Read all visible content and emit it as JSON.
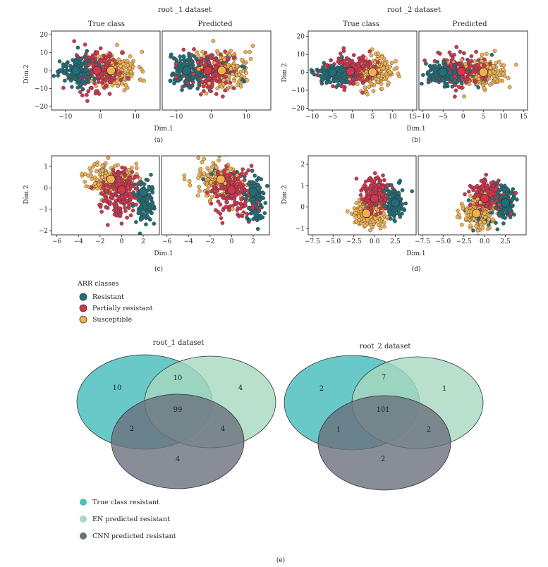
{
  "colors": {
    "resistant": "#1f6f78",
    "partially_resistant": "#d2354f",
    "susceptible": "#f3b04d",
    "venn_true": "#4fbfc0",
    "venn_en": "#a7d8c1",
    "venn_cnn": "#6a707d"
  },
  "legend": {
    "title": "ARR classes",
    "items": [
      {
        "label": "Resistant",
        "class": "resistant"
      },
      {
        "label": "Partially resistant",
        "class": "partially_resistant"
      },
      {
        "label": "Susceptible",
        "class": "susceptible"
      }
    ]
  },
  "chart_data": [
    {
      "type": "scatter",
      "panel": "(a)",
      "title": "root _1 dataset",
      "subplots": [
        "True class",
        "Predicted"
      ],
      "xlabel": "Dim.1",
      "ylabel": "Dim.2",
      "xlim": [
        -14,
        17
      ],
      "ylim": [
        -22,
        22
      ],
      "xticks": [
        -10,
        0,
        10
      ],
      "xtick_labels": [
        "−10",
        "0",
        "10"
      ],
      "yticks": [
        -20,
        -10,
        0,
        10,
        20
      ],
      "ytick_labels": [
        "−20",
        "−10",
        "0",
        "10",
        "20"
      ],
      "series": [
        {
          "class": "resistant",
          "center": [
            -7,
            0
          ],
          "spread": [
            3.2,
            5.5
          ]
        },
        {
          "class": "partially_resistant",
          "center": [
            -1.5,
            0
          ],
          "spread": [
            4.5,
            7.5
          ]
        },
        {
          "class": "susceptible",
          "center": [
            4,
            0
          ],
          "spread": [
            4.5,
            7
          ]
        }
      ],
      "centroids": [
        [
          -7,
          0
        ],
        [
          -1,
          0
        ],
        [
          3,
          0
        ]
      ]
    },
    {
      "type": "scatter",
      "panel": "(b)",
      "title": "root _2 dataset",
      "subplots": [
        "True class",
        "Predicted"
      ],
      "xlabel": "Dim.1",
      "ylabel": "Dim.2",
      "xlim": [
        -11,
        16
      ],
      "ylim": [
        -21,
        23
      ],
      "xticks": [
        -10,
        -5,
        0,
        5,
        10,
        15
      ],
      "xtick_labels": [
        "−10",
        "−5",
        "0",
        "5",
        "10",
        "15"
      ],
      "yticks": [
        -20,
        -10,
        0,
        10,
        20
      ],
      "ytick_labels": [
        "−20",
        "−10",
        "0",
        "10",
        "20"
      ],
      "series": [
        {
          "class": "resistant",
          "center": [
            -5,
            -1
          ],
          "spread": [
            3,
            4
          ]
        },
        {
          "class": "partially_resistant",
          "center": [
            -1,
            1
          ],
          "spread": [
            4,
            6
          ]
        },
        {
          "class": "susceptible",
          "center": [
            5,
            0
          ],
          "spread": [
            3.5,
            5.5
          ]
        }
      ],
      "centroids": [
        [
          -5,
          0
        ],
        [
          -0.5,
          0.5
        ],
        [
          5,
          0
        ]
      ]
    },
    {
      "type": "scatter",
      "panel": "(c)",
      "subplots": [
        "",
        ""
      ],
      "xlabel": "Dim.1",
      "ylabel": "Dim.2",
      "xlim": [
        -6.5,
        3.5
      ],
      "ylim": [
        -2.2,
        1.5
      ],
      "xticks": [
        -6,
        -4,
        -2,
        0,
        2
      ],
      "xtick_labels": [
        "−6",
        "−4",
        "−2",
        "0",
        "2"
      ],
      "yticks": [
        -2,
        -1,
        0,
        1
      ],
      "ytick_labels": [
        "−2",
        "−1",
        "0",
        "1"
      ],
      "series": [
        {
          "class": "resistant",
          "center": [
            2.2,
            -0.6
          ],
          "spread": [
            0.6,
            0.7
          ]
        },
        {
          "class": "partially_resistant",
          "center": [
            0,
            -0.2
          ],
          "spread": [
            1.2,
            0.7
          ]
        },
        {
          "class": "susceptible",
          "center": [
            -1,
            0.4
          ],
          "spread": [
            1.5,
            0.55
          ]
        }
      ],
      "centroids": [
        [
          2,
          -0.2
        ],
        [
          0,
          -0.1
        ],
        [
          -1,
          0.4
        ]
      ]
    },
    {
      "type": "scatter",
      "panel": "(d)",
      "subplots": [
        "",
        ""
      ],
      "xlabel": "Dim.1",
      "ylabel": "Dim.2",
      "xlim": [
        -8,
        5
      ],
      "ylim": [
        -1.3,
        2.4
      ],
      "xticks": [
        -7.5,
        -5,
        -2.5,
        0,
        2.5
      ],
      "xtick_labels": [
        "−7.5",
        "−5.0",
        "−2.5",
        "0.0",
        "2.5"
      ],
      "yticks": [
        -1,
        0,
        1,
        2
      ],
      "ytick_labels": [
        "−1",
        "0",
        "1",
        "2"
      ],
      "series": [
        {
          "class": "resistant",
          "center": [
            2.5,
            0.2
          ],
          "spread": [
            0.7,
            0.5
          ]
        },
        {
          "class": "partially_resistant",
          "center": [
            0.3,
            0.6
          ],
          "spread": [
            1.1,
            0.5
          ]
        },
        {
          "class": "susceptible",
          "center": [
            -0.8,
            -0.3
          ],
          "spread": [
            1.3,
            0.45
          ]
        }
      ],
      "centroids": [
        [
          2.5,
          0.2
        ],
        [
          0,
          0.4
        ],
        [
          -1,
          -0.3
        ]
      ]
    },
    {
      "type": "venn",
      "panel": "(e)",
      "title": "root_1 dataset",
      "regions": {
        "true_only": 10,
        "true_en": 10,
        "en_only": 4,
        "all": 99,
        "true_cnn": 2,
        "en_cnn": 4,
        "cnn_only": 4
      }
    },
    {
      "type": "venn",
      "panel": "(e)",
      "title": "root_2 dataset",
      "regions": {
        "true_only": 2,
        "true_en": 7,
        "en_only": 1,
        "all": 101,
        "true_cnn": 1,
        "en_cnn": 2,
        "cnn_only": 2
      }
    }
  ],
  "venn_legend": [
    {
      "label": "True class resistant",
      "key": "venn_true"
    },
    {
      "label": "EN predicted resistant",
      "key": "venn_en"
    },
    {
      "label": "CNN predicted resistant",
      "key": "venn_cnn"
    }
  ],
  "captions": {
    "a": "(a)",
    "b": "(b)",
    "c": "(c)",
    "d": "(d)",
    "e": "(e)"
  }
}
